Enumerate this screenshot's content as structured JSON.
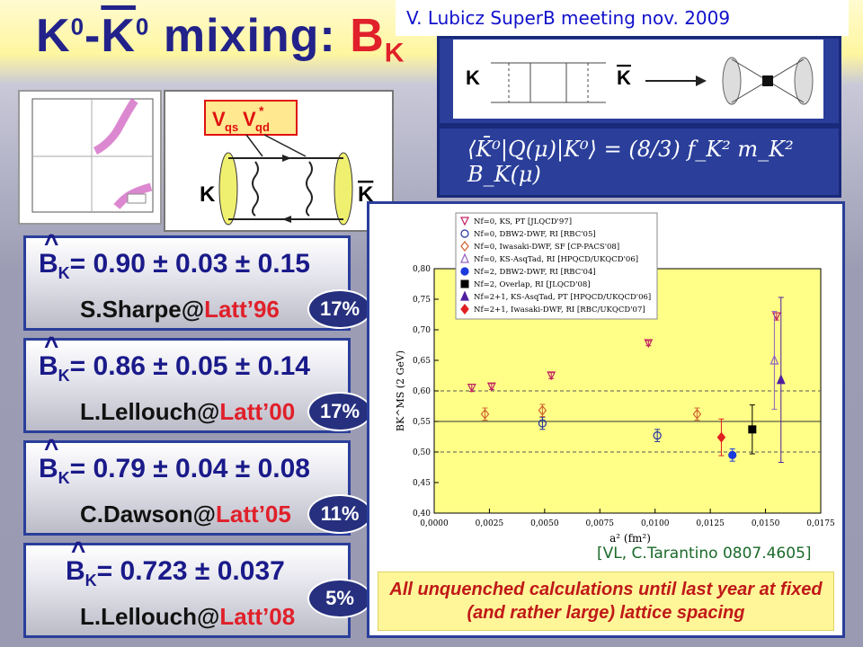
{
  "slide": {
    "title": {
      "base": "K",
      "sup0": "0",
      "sep": "-",
      "bar": "K",
      "sup0b": "0",
      "mix": " mixing: ",
      "bk": "B",
      "bk_sub": "K"
    },
    "credit": "V. Lubicz SuperB meeting nov. 2009",
    "formula": "⟨K̄⁰|Q(μ)|K⁰⟩ = (8/3) f_K² m_K² B_K(μ)",
    "diagram_labels": {
      "k": "K",
      "kbar": "K",
      "vqs": "V",
      "vqs_sub": "qs",
      "vqd_sub": "qd",
      "star": "*"
    },
    "cards": [
      {
        "b": "B",
        "sub": "K",
        "value": "= 0.90 ± 0.03 ± 0.15",
        "author": "S.Sharpe@",
        "latt": "Latt’96",
        "badge": "17%"
      },
      {
        "b": "B",
        "sub": "K",
        "value": "= 0.86 ± 0.05 ± 0.14",
        "author": "L.Lellouch@",
        "latt": "Latt’00",
        "badge": "17%"
      },
      {
        "b": "B",
        "sub": "K",
        "value": "= 0.79 ± 0.04 ± 0.08",
        "author": "C.Dawson@",
        "latt": "Latt’05",
        "badge": "11%"
      },
      {
        "b": "B",
        "sub": "K",
        "value": "= 0.723 ± 0.037",
        "author": "L.Lellouch@",
        "latt": "Latt’08",
        "badge": "5%"
      }
    ],
    "reference": "[VL, C.Tarantino 0807.4605]",
    "note": "All unquenched calculations until last year at fixed (and rather large) lattice spacing"
  },
  "chart_data": {
    "type": "scatter",
    "xlabel": "a² (fm²)",
    "ylabel": "BK^MS (2 GeV)",
    "xlim": [
      0,
      0.0175
    ],
    "ylim": [
      0.4,
      0.8
    ],
    "xticks": [
      "0,0000",
      "0,0025",
      "0,0050",
      "0,0075",
      "0,0100",
      "0,0125",
      "0,0150",
      "0,0175"
    ],
    "yticks": [
      "0,40",
      "0,45",
      "0,50",
      "0,55",
      "0,60",
      "0,65",
      "0,70",
      "0,75",
      "0,80"
    ],
    "hlines": [
      0.5,
      0.55,
      0.6
    ],
    "legend_position": "top-center",
    "series": [
      {
        "name": "Nf=0, KS, PT [JLQCD'97]",
        "color": "#c02060",
        "marker": "tri-down-open",
        "points": [
          [
            0.0017,
            0.605,
            0.006
          ],
          [
            0.0026,
            0.607,
            0.005
          ],
          [
            0.0053,
            0.625,
            0.005
          ],
          [
            0.0097,
            0.678,
            0.004
          ],
          [
            0.0155,
            0.722,
            0.006
          ]
        ]
      },
      {
        "name": "Nf=0, DBW2-DWF, RI [RBC'05]",
        "color": "#2030a0",
        "marker": "circle-open",
        "points": [
          [
            0.0049,
            0.547,
            0.01
          ],
          [
            0.0101,
            0.527,
            0.01
          ]
        ]
      },
      {
        "name": "Nf=0, Iwasaki-DWF, SF [CP-PACS'08]",
        "color": "#d06030",
        "marker": "diamond-open",
        "points": [
          [
            0.0023,
            0.562,
            0.01
          ],
          [
            0.0049,
            0.568,
            0.01
          ],
          [
            0.0119,
            0.562,
            0.01
          ]
        ]
      },
      {
        "name": "Nf=0, KS-AsqTad, RI [HPQCD/UKQCD'06]",
        "color": "#9060c0",
        "marker": "tri-up-open",
        "points": [
          [
            0.0154,
            0.65,
            0.08
          ]
        ]
      },
      {
        "name": "Nf=2, DBW2-DWF, RI [RBC'04]",
        "color": "#1a3adc",
        "marker": "circle-filled",
        "points": [
          [
            0.0135,
            0.495,
            0.01
          ]
        ]
      },
      {
        "name": "Nf=2, Overlap, RI [JLQCD'08]",
        "color": "#000000",
        "marker": "square-filled",
        "points": [
          [
            0.0144,
            0.537,
            0.04
          ]
        ]
      },
      {
        "name": "Nf=2+1, KS-AsqTad, PT [HPQCD/UKQCD'06]",
        "color": "#5020a0",
        "marker": "tri-up-filled",
        "points": [
          [
            0.0157,
            0.618,
            0.135
          ]
        ]
      },
      {
        "name": "Nf=2+1, Iwasaki-DWF, RI [RBC/UKQCD'07]",
        "color": "#e02020",
        "marker": "diamond-filled",
        "points": [
          [
            0.013,
            0.524,
            0.03
          ]
        ]
      }
    ]
  }
}
